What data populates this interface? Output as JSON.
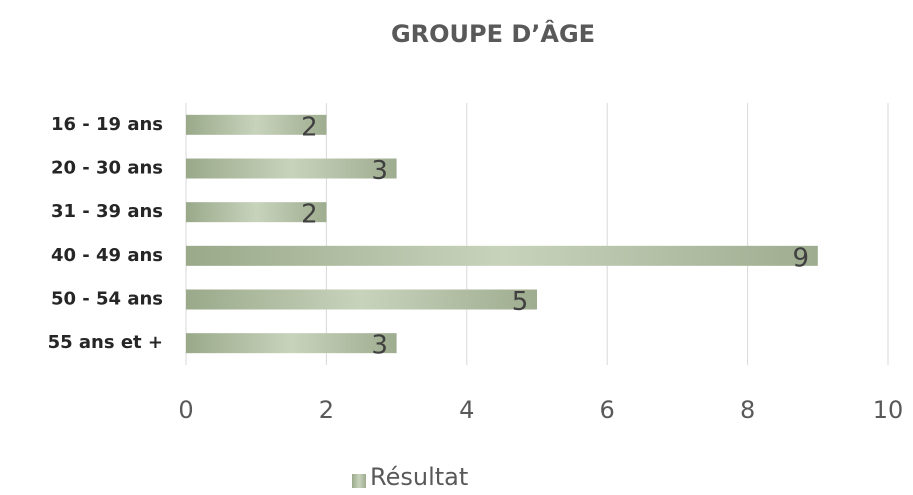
{
  "chart_data": {
    "type": "bar",
    "orientation": "horizontal",
    "title": "GROUPE D’ÂGE",
    "categories": [
      "16 - 19 ans",
      "20 - 30 ans",
      "31 - 39 ans",
      "40 - 49 ans",
      "50 - 54 ans",
      "55 ans et +"
    ],
    "series": [
      {
        "name": "Résultat",
        "color": "#b3c0a5",
        "values": [
          2,
          3,
          2,
          9,
          5,
          3
        ]
      }
    ],
    "xlim": [
      0,
      10
    ],
    "xticks": [
      0,
      2,
      4,
      6,
      8,
      10
    ],
    "grid": true,
    "legend": "bottom"
  }
}
